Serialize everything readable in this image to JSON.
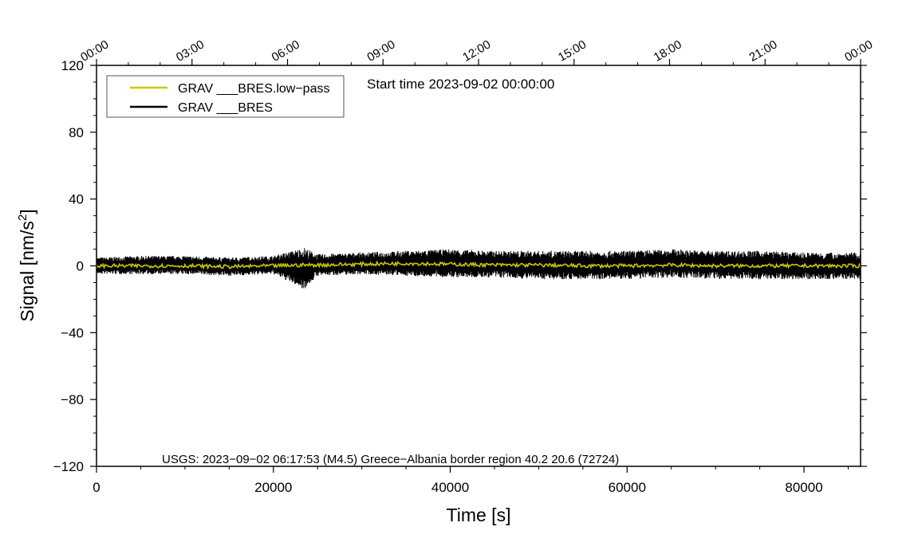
{
  "chart_data": {
    "type": "line",
    "xlabel": "Time [s]",
    "ylabel": "Signal [nm/s",
    "ylabel_sup": "2",
    "ylabel_end": "]",
    "xlim": [
      0,
      86400
    ],
    "ylim": [
      -120,
      120
    ],
    "xticks": [
      0,
      20000,
      40000,
      60000,
      80000
    ],
    "yticks": [
      120,
      80,
      40,
      0,
      -40,
      -80,
      -120
    ],
    "ytick_labels": [
      "120",
      "80",
      "40",
      "0",
      "−40",
      "−80",
      "−120"
    ],
    "top_axis_labels": [
      "00:00",
      "03:00",
      "06:00",
      "09:00",
      "12:00",
      "15:00",
      "18:00",
      "21:00",
      "00:00"
    ],
    "top_axis_interval_s": 10800,
    "annotations": {
      "start_time": "Start time 2023-09-02 00:00:00",
      "event": "USGS: 2023−09−02 06:17:53 (M4.5) Greece−Albania border region 40.2 20.6 (72724)"
    },
    "legend_placement": "top-left",
    "series": [
      {
        "name": "GRAV ___BRES.low−pass",
        "color": "#c8c800",
        "x": [
          0,
          5000,
          10000,
          15000,
          20000,
          23500,
          25000,
          30000,
          35000,
          40000,
          45000,
          50000,
          55000,
          60000,
          65000,
          70000,
          75000,
          80000,
          86400
        ],
        "y": [
          0,
          0,
          0,
          -0.5,
          0,
          0.5,
          0.5,
          1,
          1.5,
          1,
          0.5,
          0.5,
          0,
          0,
          0.5,
          0,
          0,
          0,
          0
        ]
      },
      {
        "name": "GRAV ___BRES",
        "color": "#000000",
        "x": [
          0,
          5000,
          10000,
          15000,
          20000,
          23500,
          25000,
          30000,
          35000,
          40000,
          45000,
          50000,
          55000,
          60000,
          65000,
          70000,
          75000,
          80000,
          86400
        ],
        "y_upper": [
          5,
          6,
          6,
          5,
          6,
          11,
          7,
          8,
          9,
          10,
          9,
          9,
          9,
          9,
          10,
          9,
          9,
          8,
          8
        ],
        "y_lower": [
          -5,
          -5,
          -5,
          -6,
          -5,
          -14,
          -6,
          -5,
          -6,
          -7,
          -7,
          -8,
          -8,
          -8,
          -7,
          -8,
          -8,
          -8,
          -8
        ]
      }
    ]
  }
}
